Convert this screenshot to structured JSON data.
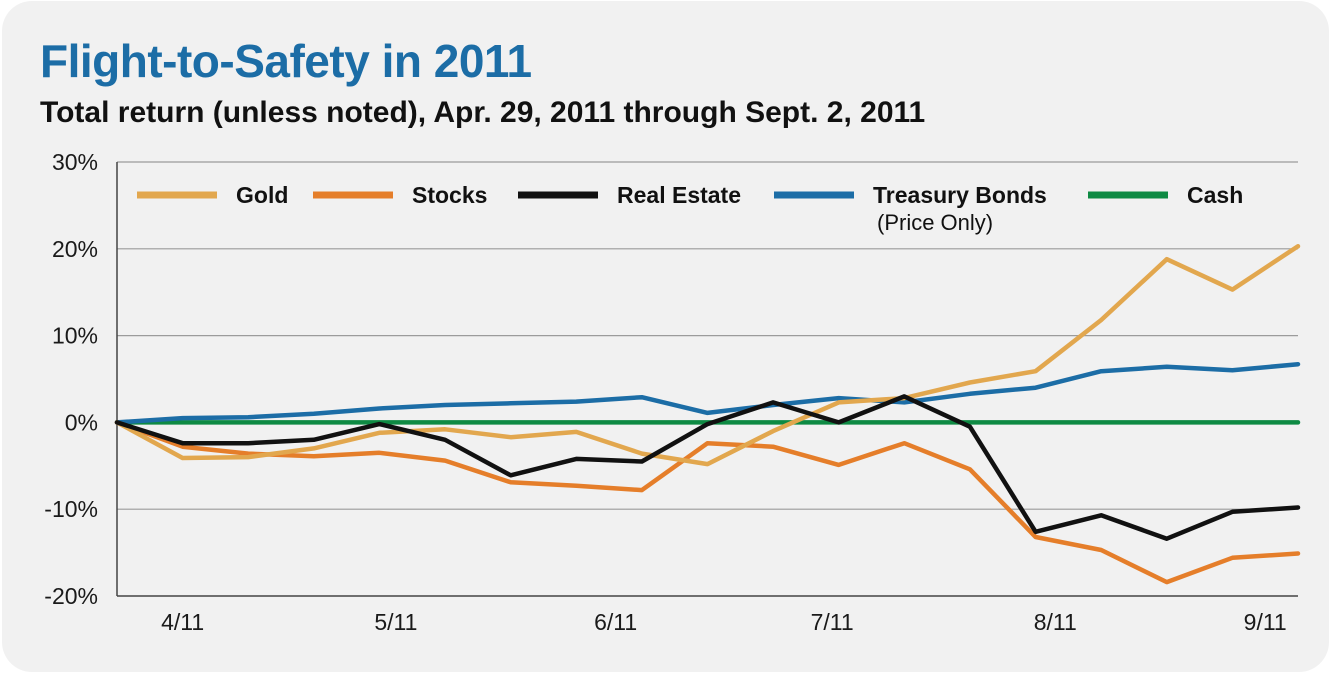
{
  "title": "Flight-to-Safety in 2011",
  "subtitle": "Total return (unless noted), Apr. 29, 2011 through Sept. 2, 2011",
  "chart_data": {
    "type": "line",
    "title": "Flight-to-Safety in 2011",
    "subtitle": "Total return (unless noted), Apr. 29, 2011 through Sept. 2, 2011",
    "xlabel": "",
    "ylabel": "",
    "ylim": [
      -20,
      30
    ],
    "y_ticks": [
      30,
      20,
      10,
      0,
      -10,
      -20
    ],
    "y_tick_labels": [
      "30%",
      "20%",
      "10%",
      "0%",
      "-10%",
      "-20%"
    ],
    "x_tick_labels": [
      {
        "label": "4/11",
        "index": 1
      },
      {
        "label": "5/11",
        "index": 4.25
      },
      {
        "label": "6/11",
        "index": 7.6
      },
      {
        "label": "7/11",
        "index": 10.9
      },
      {
        "label": "8/11",
        "index": 14.3
      },
      {
        "label": "9/11",
        "index": 17.5
      }
    ],
    "n_points": 19,
    "grid": true,
    "legend_position": "top",
    "series": [
      {
        "name": "Gold",
        "note": "",
        "color": "#e2a74e",
        "values": [
          0,
          -4.1,
          -4.0,
          -3.0,
          -1.2,
          -0.8,
          -1.7,
          -1.1,
          -3.6,
          -4.8,
          -1.0,
          2.3,
          2.8,
          4.6,
          5.9,
          11.8,
          18.8,
          15.3,
          20.3
        ]
      },
      {
        "name": "Stocks",
        "note": "",
        "color": "#e57e2a",
        "values": [
          0,
          -2.8,
          -3.6,
          -3.9,
          -3.5,
          -4.4,
          -6.9,
          -7.3,
          -7.8,
          -2.4,
          -2.8,
          -4.9,
          -2.4,
          -5.4,
          -13.2,
          -14.7,
          -18.4,
          -15.6,
          -15.1
        ]
      },
      {
        "name": "Real Estate",
        "note": "",
        "color": "#111111",
        "values": [
          0,
          -2.4,
          -2.4,
          -2.0,
          -0.2,
          -2.0,
          -6.1,
          -4.2,
          -4.5,
          -0.2,
          2.3,
          0,
          3.0,
          -0.5,
          -12.6,
          -10.7,
          -13.4,
          -10.3,
          -9.8
        ]
      },
      {
        "name": "Treasury Bonds",
        "note": "(Price Only)",
        "color": "#1c6da6",
        "values": [
          0,
          0.5,
          0.6,
          1.0,
          1.6,
          2.0,
          2.2,
          2.4,
          2.9,
          1.1,
          2.0,
          2.8,
          2.3,
          3.3,
          4.0,
          5.9,
          6.4,
          6.0,
          6.7
        ]
      },
      {
        "name": "Cash",
        "note": "",
        "color": "#0e8a43",
        "values": [
          0,
          0,
          0,
          0,
          0,
          0,
          0,
          0,
          0,
          0,
          0,
          0,
          0,
          0,
          0,
          0,
          0,
          0,
          0
        ]
      }
    ]
  }
}
